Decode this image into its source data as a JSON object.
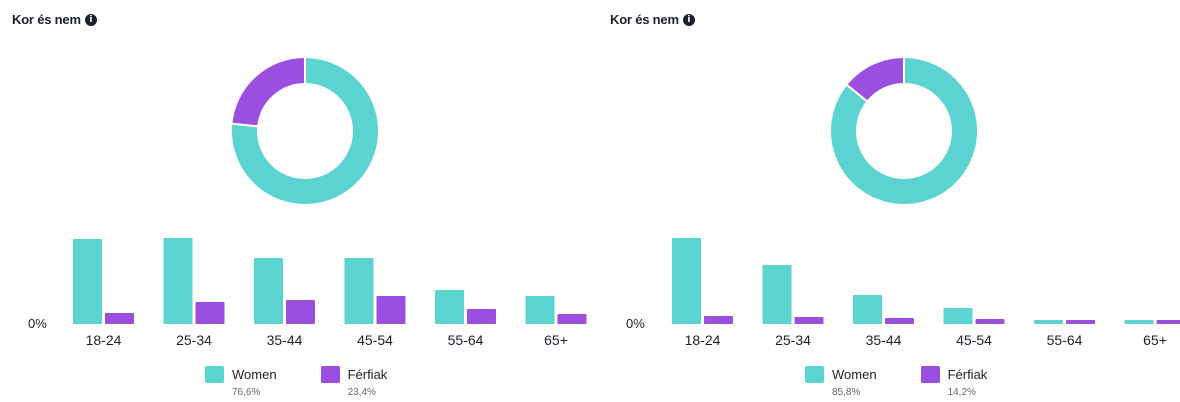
{
  "colors": {
    "women": "#5bd4d1",
    "men": "#9b4fe0"
  },
  "chart_data": [
    {
      "type": "bar",
      "title": "Kor és nem",
      "info_icon": "info-icon",
      "categories": [
        "18-24",
        "25-34",
        "35-44",
        "45-54",
        "55-64",
        "65+"
      ],
      "series": [
        {
          "name": "Women",
          "values": [
            85,
            86,
            66,
            66,
            34,
            28
          ]
        },
        {
          "name": "Férfiak",
          "values": [
            11,
            22,
            24,
            28,
            15,
            10
          ]
        }
      ],
      "ytick": "0%",
      "ylim": [
        0,
        100
      ],
      "donut": {
        "type": "pie",
        "slices": [
          {
            "name": "Women",
            "value": 76.6
          },
          {
            "name": "Férfiak",
            "value": 23.4
          }
        ]
      },
      "legend": [
        {
          "name": "Women",
          "pct": "76,6%"
        },
        {
          "name": "Férfiak",
          "pct": "23,4%"
        }
      ]
    },
    {
      "type": "bar",
      "title": "Kor és nem",
      "info_icon": "info-icon",
      "categories": [
        "18-24",
        "25-34",
        "35-44",
        "45-54",
        "55-64",
        "65+"
      ],
      "series": [
        {
          "name": "Women",
          "values": [
            86,
            59,
            29,
            16,
            4,
            4
          ]
        },
        {
          "name": "Férfiak",
          "values": [
            8,
            7,
            6,
            5,
            4,
            4
          ]
        }
      ],
      "ytick": "0%",
      "ylim": [
        0,
        100
      ],
      "donut": {
        "type": "pie",
        "slices": [
          {
            "name": "Women",
            "value": 85.8
          },
          {
            "name": "Férfiak",
            "value": 14.2
          }
        ]
      },
      "legend": [
        {
          "name": "Women",
          "pct": "85,8%"
        },
        {
          "name": "Férfiak",
          "pct": "14,2%"
        }
      ]
    }
  ]
}
